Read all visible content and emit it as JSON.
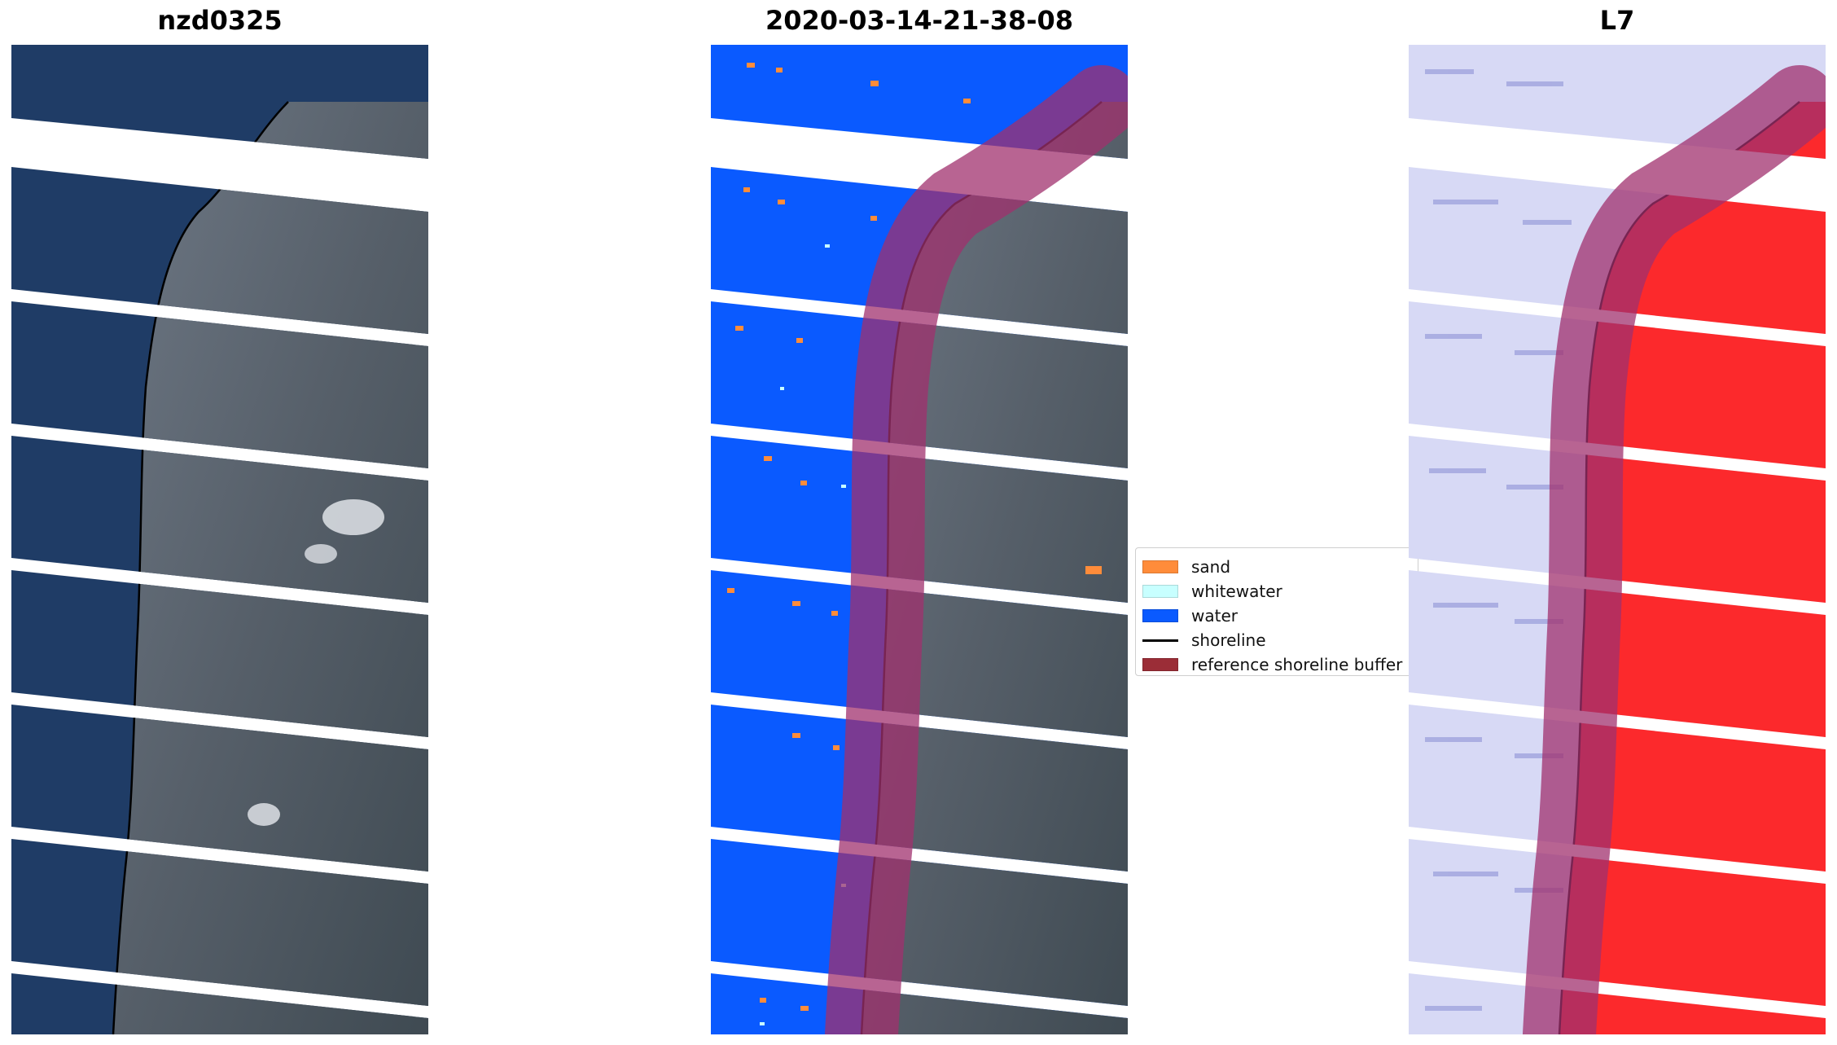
{
  "panels": [
    {
      "title": "nzd0325",
      "kind": "rgb-image"
    },
    {
      "title": "2020-03-14-21-38-08",
      "kind": "classified-image"
    },
    {
      "title": "L7",
      "kind": "index-image"
    }
  ],
  "legend": {
    "items": [
      {
        "label": "sand",
        "type": "patch",
        "color": "#ff8c3a"
      },
      {
        "label": "whitewater",
        "type": "patch",
        "color": "#c8ffff"
      },
      {
        "label": "water",
        "type": "patch",
        "color": "#0a5aff"
      },
      {
        "label": "shoreline",
        "type": "line",
        "color": "#000000"
      },
      {
        "label": "reference shoreline buffer",
        "type": "patch",
        "color": "#9b2d37"
      }
    ]
  },
  "colors": {
    "ocean": "#1f3c66",
    "land": "#5d6a78",
    "water_class": "#0a5aff",
    "index_low": "#d7d9f5",
    "index_high": "#ff1a1a",
    "buffer": "#a0306e"
  }
}
